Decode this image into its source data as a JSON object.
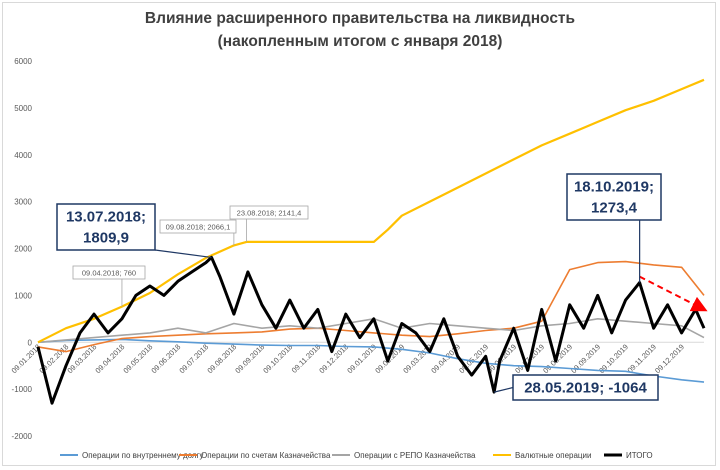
{
  "chart_data": {
    "type": "line",
    "title": "Влияние расширенного правительства на ликвидность",
    "subtitle": "(накопленным итогом с января 2018)",
    "ylim": [
      -2000,
      6000
    ],
    "yticks": [
      -2000,
      -1000,
      0,
      1000,
      2000,
      3000,
      4000,
      5000,
      6000
    ],
    "grid": false,
    "legend_position": "bottom",
    "x_tick_labels": [
      "09.01.2018",
      "09.02.2018",
      "09.03.2018",
      "09.04.2018",
      "09.05.2018",
      "09.06.2018",
      "09.07.2018",
      "09.08.2018",
      "09.09.2018",
      "09.10.2018",
      "09.11.2018",
      "09.12.2018",
      "09.01.2019",
      "09.02.2019",
      "09.03.2019",
      "09.04.2019",
      "09.05.2019",
      "09.06.2019",
      "09.07.2019",
      "09.08.2019",
      "09.09.2019",
      "09.10.2019",
      "09.11.2019",
      "09.12.2019"
    ],
    "series": [
      {
        "name": "Операции по внутреннему долгу",
        "color": "#5b9bd5",
        "width": 1.6,
        "values": [
          [
            0,
            0
          ],
          [
            1,
            40
          ],
          [
            2,
            50
          ],
          [
            3,
            60
          ],
          [
            4,
            30
          ],
          [
            5,
            10
          ],
          [
            6,
            -20
          ],
          [
            7,
            -40
          ],
          [
            8,
            -60
          ],
          [
            9,
            -70
          ],
          [
            10,
            -70
          ],
          [
            11,
            -90
          ],
          [
            12,
            -100
          ],
          [
            13,
            -150
          ],
          [
            14,
            -230
          ],
          [
            15,
            -350
          ],
          [
            16,
            -450
          ],
          [
            17,
            -500
          ],
          [
            18,
            -520
          ],
          [
            19,
            -560
          ],
          [
            20,
            -600
          ],
          [
            21,
            -620
          ],
          [
            22,
            -720
          ],
          [
            23,
            -800
          ],
          [
            23.8,
            -850
          ]
        ]
      },
      {
        "name": "Операции по счетам Казначейства",
        "color": "#ed7d31",
        "width": 1.6,
        "values": [
          [
            0,
            -100
          ],
          [
            1,
            -200
          ],
          [
            2,
            -50
          ],
          [
            3,
            80
          ],
          [
            4,
            120
          ],
          [
            5,
            150
          ],
          [
            6,
            180
          ],
          [
            7,
            200
          ],
          [
            8,
            220
          ],
          [
            9,
            280
          ],
          [
            10,
            300
          ],
          [
            11,
            250
          ],
          [
            12,
            200
          ],
          [
            13,
            150
          ],
          [
            14,
            120
          ],
          [
            15,
            180
          ],
          [
            16,
            250
          ],
          [
            17,
            300
          ],
          [
            18,
            450
          ],
          [
            19,
            1550
          ],
          [
            20,
            1700
          ],
          [
            21,
            1720
          ],
          [
            22,
            1650
          ],
          [
            23,
            1600
          ],
          [
            23.8,
            1000
          ]
        ]
      },
      {
        "name": "Операции с РЕПО Казначейства",
        "color": "#a5a5a5",
        "width": 1.6,
        "values": [
          [
            0,
            0
          ],
          [
            1,
            50
          ],
          [
            2,
            100
          ],
          [
            3,
            150
          ],
          [
            4,
            200
          ],
          [
            5,
            300
          ],
          [
            6,
            200
          ],
          [
            7,
            400
          ],
          [
            8,
            300
          ],
          [
            9,
            350
          ],
          [
            10,
            300
          ],
          [
            11,
            400
          ],
          [
            12,
            500
          ],
          [
            13,
            300
          ],
          [
            14,
            400
          ],
          [
            15,
            350
          ],
          [
            16,
            300
          ],
          [
            17,
            250
          ],
          [
            18,
            350
          ],
          [
            19,
            400
          ],
          [
            20,
            500
          ],
          [
            21,
            450
          ],
          [
            22,
            400
          ],
          [
            23,
            350
          ],
          [
            23.8,
            100
          ]
        ]
      },
      {
        "name": "Валютные операции",
        "color": "#ffc000",
        "width": 2.2,
        "values": [
          [
            0,
            0
          ],
          [
            1,
            300
          ],
          [
            2,
            500
          ],
          [
            3,
            760
          ],
          [
            4,
            1050
          ],
          [
            5,
            1450
          ],
          [
            6,
            1800
          ],
          [
            7,
            2066.1
          ],
          [
            7.45,
            2141.4
          ],
          [
            12,
            2141.4
          ],
          [
            12.5,
            2400
          ],
          [
            13,
            2700
          ],
          [
            14,
            3000
          ],
          [
            15,
            3300
          ],
          [
            16,
            3600
          ],
          [
            17,
            3900
          ],
          [
            18,
            4200
          ],
          [
            19,
            4450
          ],
          [
            20,
            4700
          ],
          [
            21,
            4950
          ],
          [
            22,
            5150
          ],
          [
            23,
            5400
          ],
          [
            23.8,
            5600
          ]
        ]
      },
      {
        "name": "ИТОГО",
        "color": "#000000",
        "width": 3.0,
        "values": [
          [
            0,
            -100
          ],
          [
            0.5,
            -1300
          ],
          [
            1,
            -500
          ],
          [
            1.5,
            200
          ],
          [
            2,
            600
          ],
          [
            2.5,
            200
          ],
          [
            3,
            500
          ],
          [
            3.5,
            1000
          ],
          [
            4,
            1200
          ],
          [
            4.5,
            1000
          ],
          [
            5,
            1300
          ],
          [
            5.5,
            1500
          ],
          [
            6,
            1700
          ],
          [
            6.2,
            1809.9
          ],
          [
            6.5,
            1400
          ],
          [
            7,
            600
          ],
          [
            7.5,
            1500
          ],
          [
            8,
            800
          ],
          [
            8.5,
            300
          ],
          [
            9,
            900
          ],
          [
            9.5,
            300
          ],
          [
            10,
            700
          ],
          [
            10.5,
            -200
          ],
          [
            11,
            600
          ],
          [
            11.5,
            100
          ],
          [
            12,
            500
          ],
          [
            12.5,
            -400
          ],
          [
            13,
            400
          ],
          [
            13.5,
            200
          ],
          [
            14,
            -200
          ],
          [
            14.5,
            500
          ],
          [
            15,
            -300
          ],
          [
            15.5,
            -700
          ],
          [
            16,
            -300
          ],
          [
            16.3,
            -1064
          ],
          [
            16.5,
            -400
          ],
          [
            17,
            300
          ],
          [
            17.5,
            -600
          ],
          [
            18,
            700
          ],
          [
            18.5,
            -400
          ],
          [
            19,
            800
          ],
          [
            19.5,
            300
          ],
          [
            20,
            1000
          ],
          [
            20.5,
            200
          ],
          [
            21,
            900
          ],
          [
            21.5,
            1273.4
          ],
          [
            22,
            300
          ],
          [
            22.5,
            800
          ],
          [
            23,
            200
          ],
          [
            23.5,
            700
          ],
          [
            23.8,
            300
          ]
        ]
      }
    ],
    "trend_arrow": {
      "color": "#ff0000",
      "from": [
        21.5,
        1400
      ],
      "to": [
        23.8,
        700
      ]
    },
    "callouts": [
      {
        "text_lines": [
          "13.07.2018;",
          "1809,9"
        ],
        "style": "big"
      },
      {
        "text_lines": [
          "18.10.2019;",
          "1273,4"
        ],
        "style": "big"
      },
      {
        "text_lines": [
          "28.05.2019; -1064"
        ],
        "style": "big"
      },
      {
        "text_lines": [
          "09.04.2018; 760"
        ],
        "style": "small"
      },
      {
        "text_lines": [
          "09.08.2018; 2066,1"
        ],
        "style": "small"
      },
      {
        "text_lines": [
          "23.08.2018; 2141,4"
        ],
        "style": "small"
      }
    ]
  }
}
